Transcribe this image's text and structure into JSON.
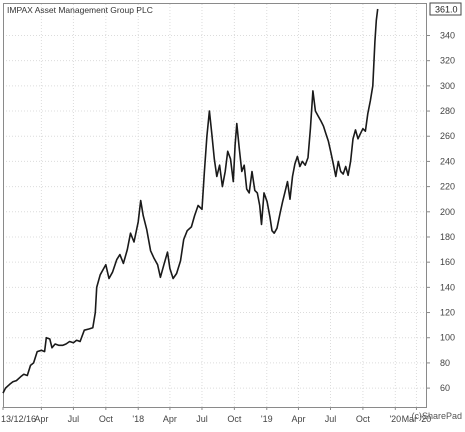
{
  "chart_data": {
    "type": "line",
    "title": "IMPAX Asset Management Group PLC",
    "credit": "(c)SharePad",
    "last_value_label": "361.0",
    "last_value": 361.0,
    "ylim": [
      45,
      365
    ],
    "y_ticks": [
      60,
      80,
      100,
      120,
      140,
      160,
      180,
      200,
      220,
      240,
      260,
      280,
      300,
      320,
      340
    ],
    "x_axis": {
      "start": "2016-12-13",
      "end": "2020-03-31",
      "ticks": [
        {
          "label": "13/12/16",
          "date": "2016-12-13"
        },
        {
          "label": "Apr",
          "date": "2017-04-01"
        },
        {
          "label": "Jul",
          "date": "2017-07-01"
        },
        {
          "label": "Oct",
          "date": "2017-10-01"
        },
        {
          "label": "'18",
          "date": "2018-01-01"
        },
        {
          "label": "Apr",
          "date": "2018-04-01"
        },
        {
          "label": "Jul",
          "date": "2018-07-01"
        },
        {
          "label": "Oct",
          "date": "2018-10-01"
        },
        {
          "label": "'19",
          "date": "2019-01-01"
        },
        {
          "label": "Apr",
          "date": "2019-04-01"
        },
        {
          "label": "Jul",
          "date": "2019-07-01"
        },
        {
          "label": "Oct",
          "date": "2019-10-01"
        },
        {
          "label": "'20",
          "date": "2020-01-01"
        },
        {
          "label": "Mar '20",
          "date": "2020-03-01"
        }
      ]
    },
    "grid": true,
    "series": [
      {
        "color": "#1a1a1a",
        "points": [
          [
            "2016-12-13",
            56
          ],
          [
            "2016-12-20",
            60
          ],
          [
            "2017-01-01",
            63
          ],
          [
            "2017-01-10",
            65
          ],
          [
            "2017-01-20",
            66
          ],
          [
            "2017-02-01",
            69
          ],
          [
            "2017-02-10",
            71
          ],
          [
            "2017-02-20",
            70
          ],
          [
            "2017-03-01",
            78
          ],
          [
            "2017-03-10",
            80
          ],
          [
            "2017-03-20",
            89
          ],
          [
            "2017-04-01",
            90
          ],
          [
            "2017-04-10",
            89
          ],
          [
            "2017-04-15",
            100
          ],
          [
            "2017-04-25",
            99
          ],
          [
            "2017-05-01",
            92
          ],
          [
            "2017-05-10",
            95
          ],
          [
            "2017-05-20",
            94
          ],
          [
            "2017-06-01",
            94
          ],
          [
            "2017-06-10",
            95
          ],
          [
            "2017-06-20",
            97
          ],
          [
            "2017-07-01",
            96
          ],
          [
            "2017-07-10",
            98
          ],
          [
            "2017-07-20",
            97
          ],
          [
            "2017-08-01",
            106
          ],
          [
            "2017-08-15",
            107
          ],
          [
            "2017-08-25",
            108
          ],
          [
            "2017-09-01",
            120
          ],
          [
            "2017-09-05",
            140
          ],
          [
            "2017-09-15",
            150
          ],
          [
            "2017-09-25",
            155
          ],
          [
            "2017-10-01",
            158
          ],
          [
            "2017-10-10",
            147
          ],
          [
            "2017-10-20",
            152
          ],
          [
            "2017-11-01",
            162
          ],
          [
            "2017-11-10",
            166
          ],
          [
            "2017-11-20",
            159
          ],
          [
            "2017-12-01",
            170
          ],
          [
            "2017-12-10",
            183
          ],
          [
            "2017-12-20",
            176
          ],
          [
            "2018-01-01",
            192
          ],
          [
            "2018-01-08",
            209
          ],
          [
            "2018-01-15",
            197
          ],
          [
            "2018-01-25",
            186
          ],
          [
            "2018-02-05",
            169
          ],
          [
            "2018-02-15",
            163
          ],
          [
            "2018-02-25",
            158
          ],
          [
            "2018-03-05",
            148
          ],
          [
            "2018-03-15",
            158
          ],
          [
            "2018-03-25",
            168
          ],
          [
            "2018-04-01",
            155
          ],
          [
            "2018-04-10",
            147
          ],
          [
            "2018-04-20",
            151
          ],
          [
            "2018-05-01",
            161
          ],
          [
            "2018-05-10",
            178
          ],
          [
            "2018-05-20",
            185
          ],
          [
            "2018-06-01",
            188
          ],
          [
            "2018-06-10",
            197
          ],
          [
            "2018-06-20",
            205
          ],
          [
            "2018-07-01",
            202
          ],
          [
            "2018-07-08",
            232
          ],
          [
            "2018-07-15",
            260
          ],
          [
            "2018-07-22",
            280
          ],
          [
            "2018-07-29",
            262
          ],
          [
            "2018-08-05",
            242
          ],
          [
            "2018-08-12",
            228
          ],
          [
            "2018-08-20",
            237
          ],
          [
            "2018-08-28",
            220
          ],
          [
            "2018-09-05",
            232
          ],
          [
            "2018-09-12",
            248
          ],
          [
            "2018-09-20",
            242
          ],
          [
            "2018-09-28",
            224
          ],
          [
            "2018-10-03",
            253
          ],
          [
            "2018-10-08",
            270
          ],
          [
            "2018-10-15",
            250
          ],
          [
            "2018-10-22",
            232
          ],
          [
            "2018-10-29",
            237
          ],
          [
            "2018-11-05",
            218
          ],
          [
            "2018-11-12",
            215
          ],
          [
            "2018-11-20",
            232
          ],
          [
            "2018-11-28",
            217
          ],
          [
            "2018-12-05",
            215
          ],
          [
            "2018-12-12",
            205
          ],
          [
            "2018-12-17",
            190
          ],
          [
            "2018-12-24",
            215
          ],
          [
            "2019-01-02",
            208
          ],
          [
            "2019-01-10",
            196
          ],
          [
            "2019-01-16",
            185
          ],
          [
            "2019-01-22",
            183
          ],
          [
            "2019-01-30",
            187
          ],
          [
            "2019-02-08",
            199
          ],
          [
            "2019-02-15",
            208
          ],
          [
            "2019-02-22",
            216
          ],
          [
            "2019-03-01",
            224
          ],
          [
            "2019-03-08",
            210
          ],
          [
            "2019-03-15",
            228
          ],
          [
            "2019-03-22",
            238
          ],
          [
            "2019-03-29",
            244
          ],
          [
            "2019-04-05",
            236
          ],
          [
            "2019-04-12",
            240
          ],
          [
            "2019-04-20",
            237
          ],
          [
            "2019-04-28",
            243
          ],
          [
            "2019-05-05",
            266
          ],
          [
            "2019-05-12",
            296
          ],
          [
            "2019-05-19",
            280
          ],
          [
            "2019-05-27",
            276
          ],
          [
            "2019-06-04",
            272
          ],
          [
            "2019-06-11",
            268
          ],
          [
            "2019-06-18",
            262
          ],
          [
            "2019-06-25",
            256
          ],
          [
            "2019-07-02",
            247
          ],
          [
            "2019-07-09",
            238
          ],
          [
            "2019-07-16",
            228
          ],
          [
            "2019-07-23",
            240
          ],
          [
            "2019-07-30",
            232
          ],
          [
            "2019-08-06",
            230
          ],
          [
            "2019-08-13",
            236
          ],
          [
            "2019-08-20",
            229
          ],
          [
            "2019-08-27",
            240
          ],
          [
            "2019-09-03",
            258
          ],
          [
            "2019-09-10",
            265
          ],
          [
            "2019-09-17",
            258
          ],
          [
            "2019-09-24",
            262
          ],
          [
            "2019-10-01",
            266
          ],
          [
            "2019-10-08",
            264
          ],
          [
            "2019-10-15",
            278
          ],
          [
            "2019-10-22",
            288
          ],
          [
            "2019-10-29",
            300
          ],
          [
            "2019-11-04",
            335
          ],
          [
            "2019-11-08",
            352
          ],
          [
            "2019-11-12",
            361
          ]
        ]
      }
    ]
  }
}
